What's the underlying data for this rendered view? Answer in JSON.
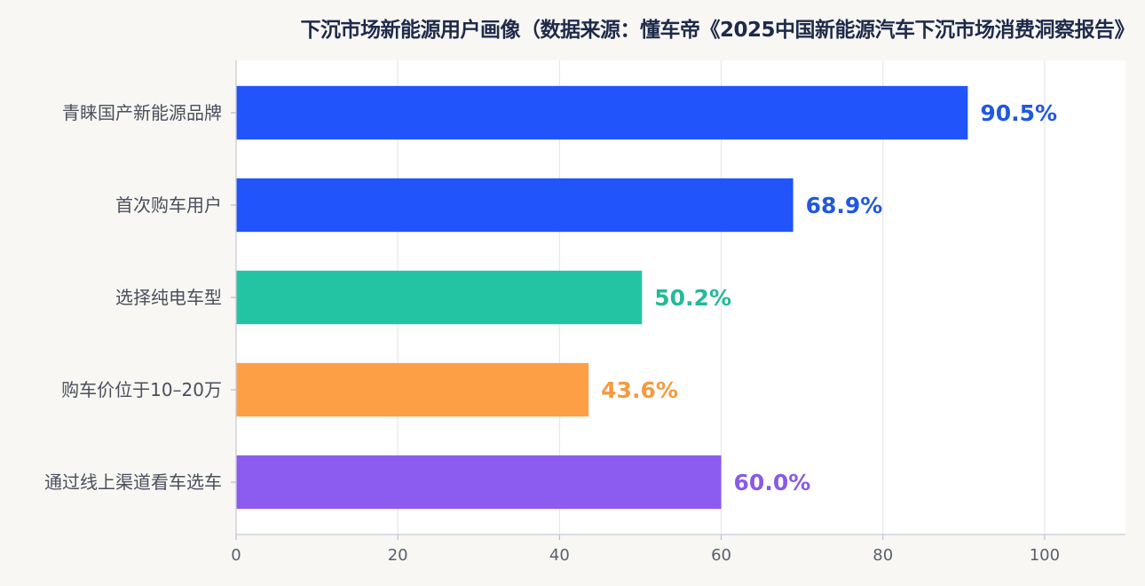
{
  "chart_data": {
    "type": "bar",
    "orientation": "horizontal",
    "title": "下沉市场新能源用户画像（数据来源：懂车帝《2025中国新能源汽车下沉市场消费洞察报告》",
    "categories": [
      "青睐国产新能源品牌",
      "首次购车用户",
      "选择纯电车型",
      "购车价位于10–20万",
      "通过线上渠道看车选车"
    ],
    "values": [
      90.5,
      68.9,
      50.2,
      43.6,
      60.0
    ],
    "value_labels": [
      "90.5%",
      "68.9%",
      "50.2%",
      "43.6%",
      "60.0%"
    ],
    "colors": [
      "#2155fb",
      "#2155fb",
      "#23c4a4",
      "#fda045",
      "#8c5cf0"
    ],
    "label_colors": [
      "#2158e0",
      "#2158e0",
      "#25b99a",
      "#f59a3e",
      "#8a5ae6"
    ],
    "xlim": [
      0,
      110
    ],
    "xticks": [
      0,
      20,
      40,
      60,
      80,
      100
    ],
    "grid": true,
    "xlabel": "",
    "ylabel": ""
  }
}
